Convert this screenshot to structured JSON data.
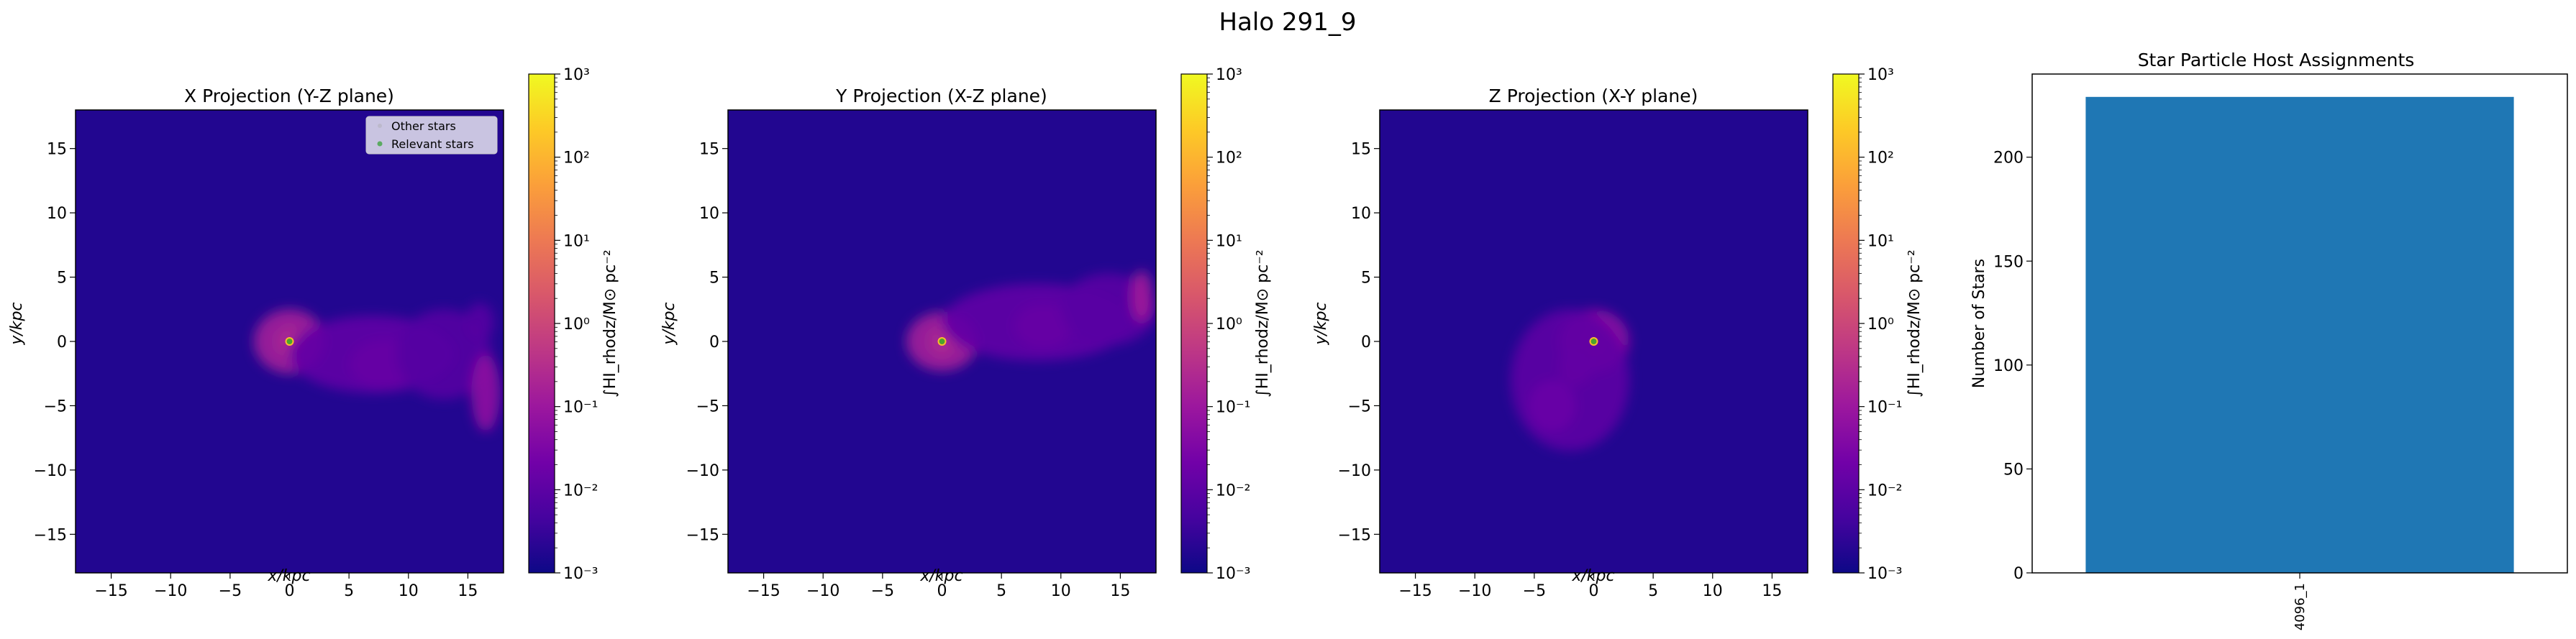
{
  "figure": {
    "suptitle": "Halo 291_9"
  },
  "colors": {
    "cmap": [
      "#0d0887",
      "#46039f",
      "#7201a8",
      "#9c179e",
      "#bd3786",
      "#d8576b",
      "#ed7953",
      "#fb9f3a",
      "#fdca26",
      "#f0f921"
    ],
    "bar": "#1f77b4",
    "star_marker": "#2ca02c"
  },
  "chart_data": [
    {
      "type": "heatmap",
      "title": "X Projection (Y-Z plane)",
      "xlabel": "x/kpc",
      "ylabel": "y/kpc",
      "xlim": [
        -18,
        18
      ],
      "ylim": [
        -18,
        18
      ],
      "xticks": [
        -15,
        -10,
        -5,
        0,
        5,
        10,
        15
      ],
      "yticks": [
        -15,
        -10,
        -5,
        0,
        5,
        10,
        15
      ],
      "legend": {
        "placement": "upper-right",
        "entries": [
          "Other stars",
          "Relevant stars"
        ]
      },
      "stars_center": [
        0,
        0
      ],
      "colorbar": {
        "label": "∫HI_rhodz/M⊙ pc⁻²",
        "scale": "log",
        "range": [
          0.001,
          1000
        ],
        "ticks": [
          "10⁻³",
          "10⁻²",
          "10⁻¹",
          "10⁰",
          "10¹",
          "10²",
          "10³"
        ]
      },
      "features": [
        {
          "x": 0,
          "y": 0,
          "level": 0.7,
          "rx": 1.2,
          "ry": 1.2
        },
        {
          "x": 0,
          "y": 0,
          "level": 0.35,
          "rx": 3,
          "ry": 2.5
        },
        {
          "x": 8,
          "y": -1.8,
          "level": 0.3,
          "rx": 3,
          "ry": 2
        },
        {
          "x": 7,
          "y": -1,
          "level": 0.18,
          "rx": 7,
          "ry": 3
        },
        {
          "x": 13,
          "y": -1,
          "level": 0.15,
          "rx": 4,
          "ry": 3.5
        },
        {
          "x": 16.5,
          "y": -4,
          "level": 0.3,
          "rx": 1.2,
          "ry": 3
        },
        {
          "x": 16,
          "y": 1.5,
          "level": 0.15,
          "rx": 1.2,
          "ry": 1.5
        }
      ]
    },
    {
      "type": "heatmap",
      "title": "Y Projection (X-Z plane)",
      "xlabel": "x/kpc",
      "ylabel": "y/kpc",
      "xlim": [
        -18,
        18
      ],
      "ylim": [
        -18,
        18
      ],
      "xticks": [
        -15,
        -10,
        -5,
        0,
        5,
        10,
        15
      ],
      "yticks": [
        -15,
        -10,
        -5,
        0,
        5,
        10,
        15
      ],
      "stars_center": [
        0,
        0
      ],
      "colorbar": {
        "label": "∫HI_rhodz/M⊙ pc⁻²",
        "scale": "log",
        "range": [
          0.001,
          1000
        ],
        "ticks": [
          "10⁻³",
          "10⁻²",
          "10⁻¹",
          "10⁰",
          "10¹",
          "10²",
          "10³"
        ]
      },
      "features": [
        {
          "x": 0,
          "y": 0,
          "level": 0.7,
          "rx": 1.2,
          "ry": 1.2
        },
        {
          "x": 0,
          "y": 0,
          "level": 0.35,
          "rx": 3,
          "ry": 2.3
        },
        {
          "x": 8.5,
          "y": 1.2,
          "level": 0.3,
          "rx": 2.5,
          "ry": 1.8
        },
        {
          "x": 8,
          "y": 1.5,
          "level": 0.18,
          "rx": 8,
          "ry": 3
        },
        {
          "x": 14,
          "y": 2.5,
          "level": 0.16,
          "rx": 4,
          "ry": 2.8
        },
        {
          "x": 16.8,
          "y": 3.5,
          "level": 0.35,
          "rx": 0.9,
          "ry": 2
        }
      ]
    },
    {
      "type": "heatmap",
      "title": "Z Projection (X-Y plane)",
      "xlabel": "x/kpc",
      "ylabel": "y/kpc",
      "xlim": [
        -18,
        18
      ],
      "ylim": [
        -18,
        18
      ],
      "xticks": [
        -15,
        -10,
        -5,
        0,
        5,
        10,
        15
      ],
      "yticks": [
        -15,
        -10,
        -5,
        0,
        5,
        10,
        15
      ],
      "stars_center": [
        0,
        0
      ],
      "colorbar": {
        "label": "∫HI_rhodz/M⊙ pc⁻²",
        "scale": "log",
        "range": [
          0.001,
          1000
        ],
        "ticks": [
          "10⁻³",
          "10⁻²",
          "10⁻¹",
          "10⁰",
          "10¹",
          "10²",
          "10³"
        ]
      },
      "features": [
        {
          "x": 0,
          "y": 0,
          "level": 0.7,
          "rx": 1.2,
          "ry": 1.2
        },
        {
          "x": 0,
          "y": 0,
          "level": 0.3,
          "rx": 3,
          "ry": 2.5
        },
        {
          "x": -1.5,
          "y": -2,
          "level": 0.3,
          "rx": 1.5,
          "ry": 1.5
        },
        {
          "x": -2,
          "y": -3,
          "level": 0.17,
          "rx": 5,
          "ry": 5.5
        },
        {
          "x": -3.5,
          "y": -5,
          "level": 0.2,
          "rx": 2,
          "ry": 2
        }
      ]
    },
    {
      "type": "bar",
      "title": "Star Particle Host Assignments",
      "ylabel": "Number of Stars",
      "categories": [
        "4096_1"
      ],
      "values": [
        229
      ],
      "ylim": [
        0,
        240
      ],
      "yticks": [
        0,
        50,
        100,
        150,
        200
      ]
    }
  ]
}
